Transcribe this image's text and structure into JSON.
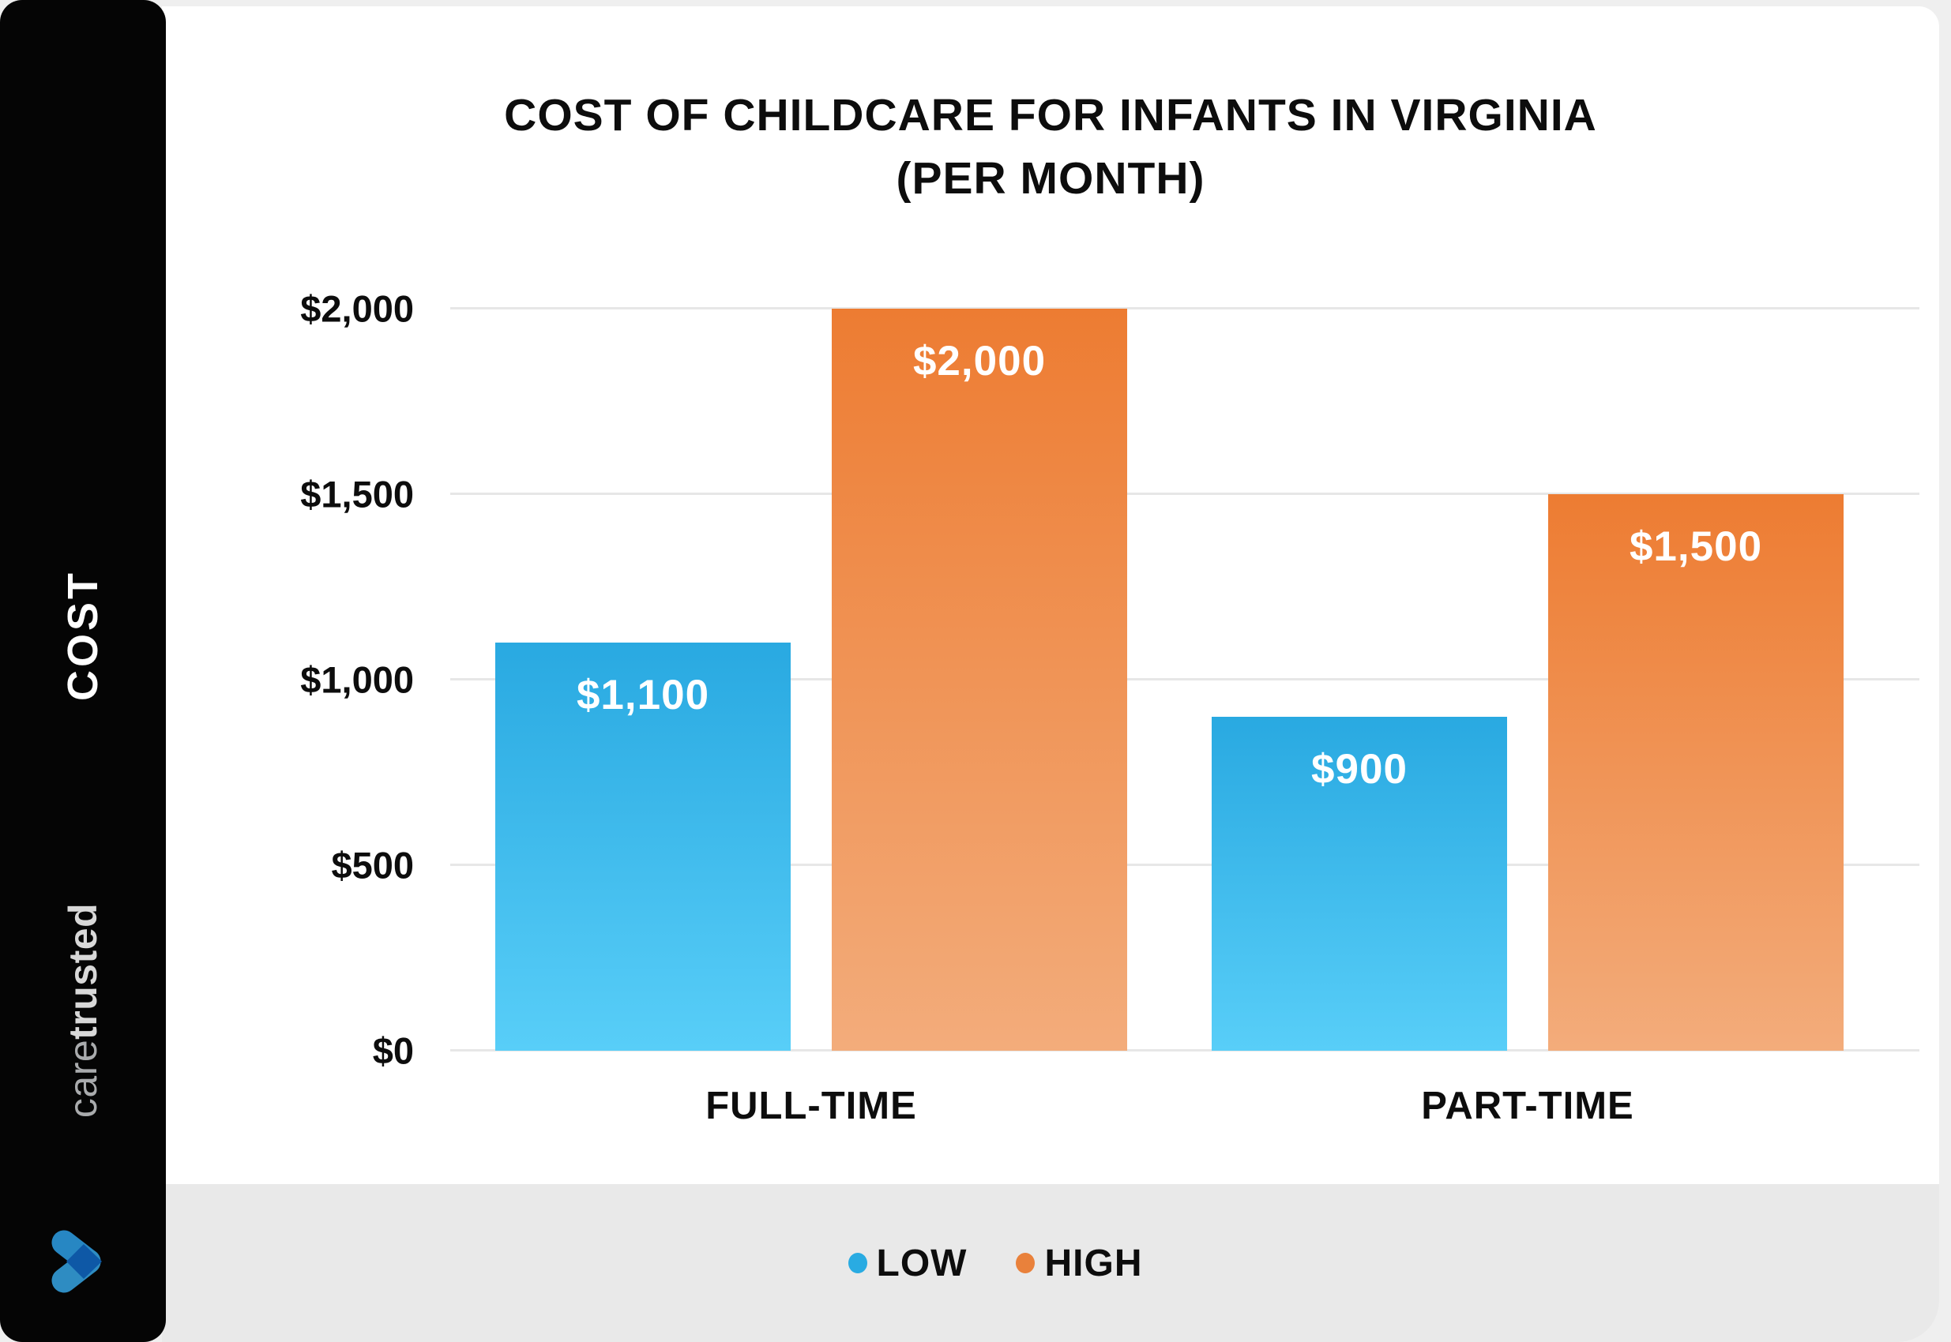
{
  "page": {
    "background": "#EFEFEF",
    "card_background": "#FFFFFF"
  },
  "sidebar": {
    "background": "#050505",
    "vertical_label": "COST",
    "brand": {
      "bold_part": "trusted",
      "light_part": "care"
    },
    "logo_colors": {
      "arm_top": "#2787C3",
      "arm_bottom": "#2E8CC2",
      "overlap_diamond": "#0E58A6"
    }
  },
  "chart_data": {
    "type": "bar",
    "title": "COST OF CHILDCARE FOR INFANTS IN VIRGINIA (PER MONTH)",
    "title_line1": "COST OF CHILDCARE FOR INFANTS IN VIRGINIA",
    "title_line2": "(PER MONTH)",
    "categories": [
      "FULL-TIME",
      "PART-TIME"
    ],
    "series": [
      {
        "name": "LOW",
        "values": [
          1100,
          900
        ],
        "value_labels": [
          "$1,100",
          "$900"
        ],
        "color_top": "#29A9E1",
        "color_bottom": "#58CEF8"
      },
      {
        "name": "HIGH",
        "values": [
          2000,
          1500
        ],
        "value_labels": [
          "$2,000",
          "$1,500"
        ],
        "color_top": "#ED7C32",
        "color_bottom": "#F3AC7B"
      }
    ],
    "ylabel": "COST",
    "ylim": [
      0,
      2000
    ],
    "ytick_interval": 500,
    "yticks": [
      {
        "value": 0,
        "label": "$0"
      },
      {
        "value": 500,
        "label": "$500"
      },
      {
        "value": 1000,
        "label": "$1,000"
      },
      {
        "value": 1500,
        "label": "$1,500"
      },
      {
        "value": 2000,
        "label": "$2,000"
      }
    ],
    "grid": "horizontal",
    "gridline_color": "#E7E7E7",
    "legend_position": "bottom"
  },
  "legend": {
    "background": "#E9E9E9",
    "items": [
      {
        "label": "LOW",
        "color": "#29ABE2"
      },
      {
        "label": "HIGH",
        "color": "#E9813B"
      }
    ]
  }
}
